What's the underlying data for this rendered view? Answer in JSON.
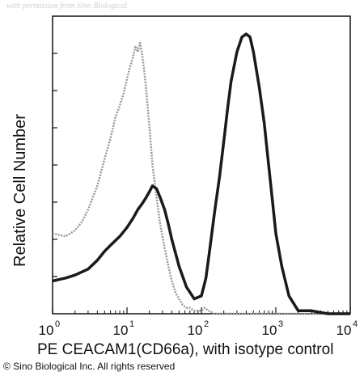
{
  "watermark": "with permission from Sino Biological",
  "copyright": "© Sino Biological Inc. All rights reserved",
  "chart_data": {
    "type": "line",
    "xscale": "log",
    "xlim": [
      1,
      10000
    ],
    "ylim": [
      0,
      100
    ],
    "xlabel": "PE CEACAM1(CD66a), with isotype control",
    "ylabel": "Relative Cell Number",
    "x_ticks": [
      {
        "value": 1,
        "base": "10",
        "exp": "0"
      },
      {
        "value": 10,
        "base": "10",
        "exp": "1"
      },
      {
        "value": 100,
        "base": "10",
        "exp": "2"
      },
      {
        "value": 1000,
        "base": "10",
        "exp": "3"
      },
      {
        "value": 10000,
        "base": "10",
        "exp": "4"
      }
    ],
    "series": [
      {
        "color": "#9a9a9a",
        "x": [
          1,
          1.5,
          2,
          2.5,
          3,
          4,
          5,
          6,
          7,
          8,
          9,
          10,
          11,
          12,
          13,
          14,
          15,
          16,
          17,
          18,
          20,
          22,
          25,
          28,
          32,
          36,
          40,
          45,
          50,
          56,
          63,
          70,
          80,
          90,
          100,
          110,
          125,
          150,
          200,
          300,
          500,
          1000,
          10000
        ],
        "y": [
          27,
          26,
          28,
          31,
          35,
          43,
          52,
          59,
          66,
          70,
          74,
          79,
          83,
          86,
          90,
          88,
          91,
          87,
          82,
          76,
          63,
          50,
          39,
          30,
          22,
          16,
          11,
          7,
          5,
          3,
          2,
          2,
          1,
          1,
          1,
          2,
          1,
          0,
          0,
          0,
          0,
          0,
          0
        ]
      },
      {
        "color": "#1a1a1a",
        "x": [
          1,
          1.5,
          2,
          3,
          4,
          5,
          6,
          8,
          10,
          12,
          14,
          16,
          18,
          20,
          22,
          25,
          28,
          32,
          36,
          40,
          50,
          63,
          80,
          100,
          115,
          130,
          150,
          175,
          200,
          225,
          250,
          300,
          350,
          400,
          450,
          500,
          600,
          700,
          800,
          900,
          1000,
          1200,
          1500,
          2000,
          3000,
          5000,
          10000
        ],
        "y": [
          11,
          12,
          13,
          15,
          18,
          21,
          23,
          26,
          29,
          32,
          35,
          37,
          39,
          41,
          43,
          42,
          39,
          35,
          30,
          25,
          16,
          9,
          5,
          6,
          12,
          22,
          34,
          46,
          58,
          69,
          78,
          88,
          93,
          94,
          93,
          88,
          76,
          64,
          50,
          38,
          27,
          16,
          6,
          1,
          1,
          0,
          0
        ]
      }
    ]
  }
}
